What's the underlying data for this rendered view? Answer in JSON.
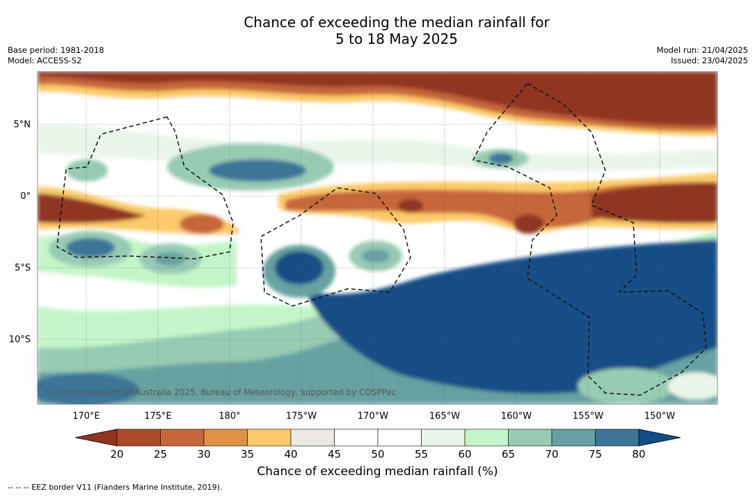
{
  "title_line1": "Chance of exceeding the median rainfall for",
  "title_line2": "5 to 18 May 2025",
  "base_period": "Base period: 1981-2018",
  "model": "Model: ACCESS-S2",
  "model_run": "Model run: 21/04/2025",
  "issued": "Issued: 23/04/2025",
  "copyright": "© Commonwealth of Australia 2025, Bureau of Meteorology, supported by COSPPac",
  "footnote": "--  --  -- EEZ border V11 (Flanders Marine Institute, 2019).",
  "lat_labels": [
    "5°N",
    "0°",
    "5°S",
    "10°S"
  ],
  "lon_labels": [
    "170°E",
    "175°E",
    "180°",
    "175°W",
    "170°W",
    "165°W",
    "160°W",
    "155°W",
    "150°W"
  ],
  "colorbar": {
    "label": "Chance of exceeding median rainfall (%)",
    "ticks": [
      "20",
      "25",
      "30",
      "35",
      "40",
      "45",
      "50",
      "55",
      "60",
      "65",
      "70",
      "75",
      "80"
    ],
    "colors": [
      "#8f3520",
      "#ad4a2a",
      "#c6663a",
      "#de9248",
      "#fcca6b",
      "#ece9e5",
      "#ffffff",
      "#ffffff",
      "#e9f5e9",
      "#c4f5c8",
      "#98cbb4",
      "#67a1a1",
      "#3e7498",
      "#134d87"
    ]
  }
}
